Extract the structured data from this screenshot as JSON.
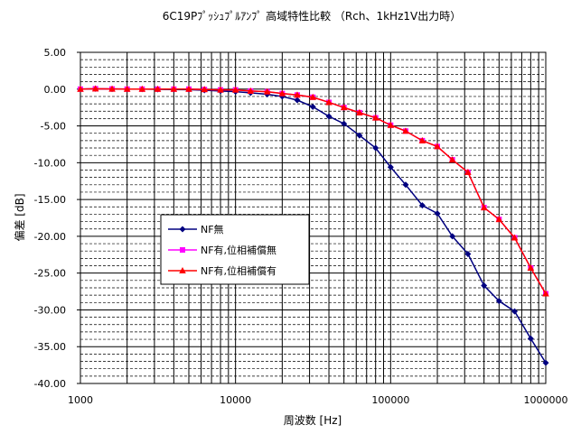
{
  "chart_data": {
    "type": "line",
    "title": "6C19Pﾌﾟｯｼｭﾌﾟﾙｱﾝﾌﾟ 高域特性比較 （Rch、1kHz1V出力時）",
    "xlabel": "周波数 [Hz]",
    "ylabel": "偏差 [dB]",
    "x_scale": "log",
    "xlim": [
      1000,
      1000000
    ],
    "ylim": [
      -40,
      5
    ],
    "x_ticks": [
      1000,
      10000,
      100000,
      1000000
    ],
    "x_tick_labels": [
      "1000",
      "10000",
      "100000",
      "1000000"
    ],
    "y_ticks": [
      5,
      0,
      -5,
      -10,
      -15,
      -20,
      -25,
      -30,
      -35,
      -40
    ],
    "y_tick_labels": [
      "5.00",
      "0.00",
      "-5.00",
      "-10.00",
      "-15.00",
      "-20.00",
      "-25.00",
      "-30.00",
      "-35.00",
      "-40.00"
    ],
    "grid": true,
    "legend": "center-left",
    "x": [
      1000,
      1250,
      1600,
      2000,
      2500,
      3150,
      4000,
      5000,
      6300,
      8000,
      10000,
      12500,
      16000,
      20000,
      25000,
      31500,
      40000,
      50000,
      63000,
      80000,
      100000,
      125000,
      160000,
      200000,
      250000,
      315000,
      400000,
      500000,
      630000,
      800000,
      1000000
    ],
    "series": [
      {
        "name": "NF無",
        "color": "#000080",
        "marker": "diamond",
        "values": [
          0.0,
          0.05,
          0.02,
          0.0,
          0.0,
          -0.02,
          -0.05,
          -0.08,
          -0.15,
          -0.25,
          -0.35,
          -0.5,
          -0.7,
          -1.0,
          -1.5,
          -2.4,
          -3.7,
          -4.7,
          -6.3,
          -8.0,
          -10.6,
          -13.0,
          -15.8,
          -16.9,
          -20.0,
          -22.4,
          -26.7,
          -28.8,
          -30.2,
          -33.9,
          -37.2
        ]
      },
      {
        "name": "NF有,位相補償無",
        "color": "#ff00ff",
        "marker": "square",
        "values": [
          0.0,
          0.05,
          0.02,
          0.0,
          0.0,
          0.0,
          0.0,
          0.0,
          -0.05,
          -0.1,
          -0.1,
          -0.25,
          -0.35,
          -0.6,
          -0.8,
          -1.1,
          -1.8,
          -2.5,
          -3.2,
          -3.9,
          -4.9,
          -5.7,
          -7.0,
          -7.8,
          -9.6,
          -11.3,
          -16.1,
          -17.7,
          -20.2,
          -24.3,
          -27.8
        ]
      },
      {
        "name": "NF有,位相補償有",
        "color": "#ff0000",
        "marker": "triangle",
        "values": [
          0.0,
          0.05,
          0.02,
          0.0,
          0.0,
          0.0,
          0.0,
          0.0,
          -0.05,
          -0.1,
          -0.1,
          -0.25,
          -0.35,
          -0.6,
          -0.8,
          -1.1,
          -1.8,
          -2.5,
          -3.2,
          -3.9,
          -4.9,
          -5.7,
          -7.0,
          -7.8,
          -9.6,
          -11.3,
          -16.1,
          -17.7,
          -20.2,
          -24.3,
          -27.8
        ]
      }
    ]
  }
}
